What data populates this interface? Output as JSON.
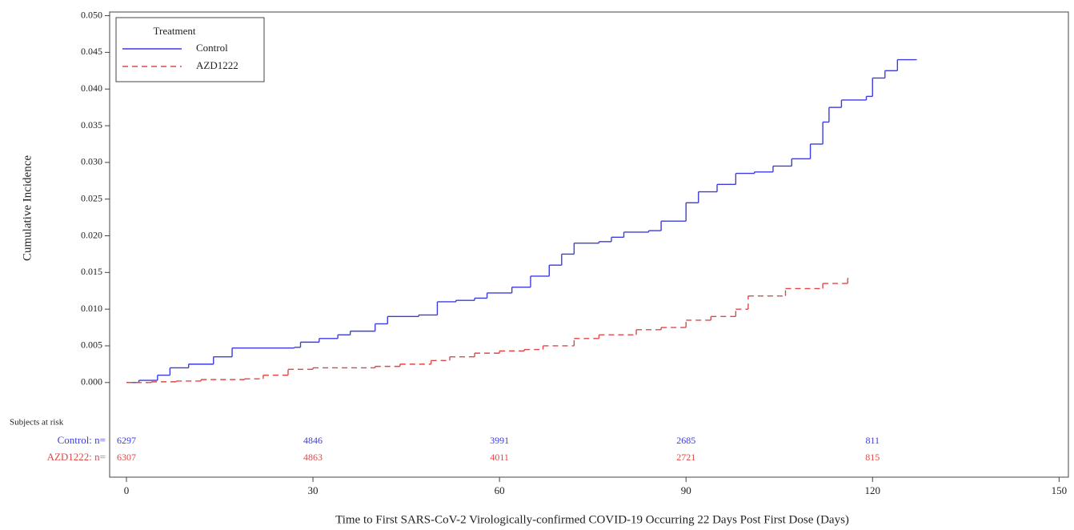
{
  "chart_data": {
    "type": "step",
    "y_label": "Cumulative Incidence",
    "x_label": "Time to First SARS-CoV-2 Virologically-confirmed COVID-19 Occurring 22 Days Post First Dose (Days)",
    "xlim": [
      -2.7,
      151.5
    ],
    "ylim": [
      -0.0129,
      0.0505
    ],
    "xticks": [
      0,
      30,
      60,
      90,
      120,
      150
    ],
    "yticks": [
      {
        "value": 0,
        "label": "0.000"
      },
      {
        "value": 0.005,
        "label": "0.005"
      },
      {
        "value": 0.01,
        "label": "0.010"
      },
      {
        "value": 0.015,
        "label": "0.015"
      },
      {
        "value": 0.02,
        "label": "0.020"
      },
      {
        "value": 0.025,
        "label": "0.025"
      },
      {
        "value": 0.03,
        "label": "0.030"
      },
      {
        "value": 0.035,
        "label": "0.035"
      },
      {
        "value": 0.04,
        "label": "0.040"
      },
      {
        "value": 0.045,
        "label": "0.045"
      },
      {
        "value": 0.05,
        "label": "0.050"
      }
    ],
    "grid": false,
    "legend": {
      "title": "Treatment",
      "position": "upper left"
    },
    "series": [
      {
        "name": "Control",
        "color": "#3c3ce0",
        "dashed": false,
        "x": [
          0,
          2,
          5,
          7,
          10,
          14,
          17,
          27,
          28,
          31,
          34,
          36,
          40,
          42,
          47,
          50,
          53,
          56,
          58,
          62,
          65,
          68,
          70,
          72,
          76,
          78,
          80,
          84,
          86,
          90,
          92,
          95,
          98,
          101,
          104,
          107,
          110,
          112,
          113,
          115,
          119,
          120,
          122,
          124,
          127
        ],
        "values": [
          0,
          0.0003,
          0.001,
          0.002,
          0.0025,
          0.0035,
          0.0047,
          0.0048,
          0.0055,
          0.006,
          0.0065,
          0.007,
          0.008,
          0.009,
          0.0092,
          0.011,
          0.0112,
          0.0115,
          0.0122,
          0.013,
          0.0145,
          0.016,
          0.0175,
          0.019,
          0.0192,
          0.0198,
          0.0205,
          0.0207,
          0.022,
          0.0245,
          0.026,
          0.027,
          0.0285,
          0.0287,
          0.0295,
          0.0305,
          0.0325,
          0.0355,
          0.0375,
          0.0385,
          0.039,
          0.0415,
          0.0425,
          0.044,
          0.044
        ]
      },
      {
        "name": "AZD1222",
        "color": "#e04848",
        "dashed": true,
        "x": [
          0,
          4,
          8,
          12,
          19,
          22,
          26,
          30,
          40,
          44,
          49,
          52,
          56,
          60,
          64,
          67,
          72,
          76,
          82,
          86,
          90,
          94,
          98,
          100,
          106,
          112,
          116
        ],
        "values": [
          0,
          0.0001,
          0.0002,
          0.0004,
          0.0005,
          0.001,
          0.0018,
          0.002,
          0.0022,
          0.0025,
          0.003,
          0.0035,
          0.004,
          0.0043,
          0.0045,
          0.005,
          0.006,
          0.0065,
          0.0072,
          0.0075,
          0.0085,
          0.009,
          0.01,
          0.0118,
          0.0128,
          0.0135,
          0.0142
        ]
      }
    ],
    "at_risk": {
      "title": "Subjects at risk",
      "rows": [
        {
          "label": "Control: n=",
          "values": [
            "6297",
            "4846",
            "3991",
            "2685",
            "811"
          ]
        },
        {
          "label": "AZD1222: n=",
          "values": [
            "6307",
            "4863",
            "4011",
            "2721",
            "815"
          ]
        }
      ]
    }
  }
}
